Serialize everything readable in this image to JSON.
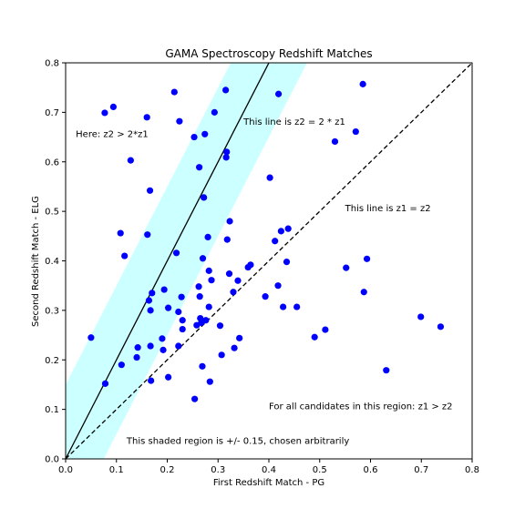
{
  "chart_data": {
    "type": "scatter",
    "title": "GAMA Spectroscopy Redshift Matches",
    "xlabel": "First Redshift Match - PG",
    "ylabel": "Second Redshift Match - ELG",
    "xlim": [
      0.0,
      0.8
    ],
    "ylim": [
      0.0,
      0.8
    ],
    "xticks": [
      "0.0",
      "0.1",
      "0.2",
      "0.3",
      "0.4",
      "0.5",
      "0.6",
      "0.7",
      "0.8"
    ],
    "yticks": [
      "0.0",
      "0.1",
      "0.2",
      "0.3",
      "0.4",
      "0.5",
      "0.6",
      "0.7",
      "0.8"
    ],
    "grid": false,
    "colors": {
      "points": "#0000ff",
      "band": "#ccffff",
      "line": "#000000"
    },
    "lines": [
      {
        "name": "z2 = 2 * z1",
        "slope": 2,
        "intercept": 0,
        "style": "solid"
      },
      {
        "name": "z1 = z2",
        "slope": 1,
        "intercept": 0,
        "style": "dashed"
      }
    ],
    "band": {
      "around_slope": 2,
      "half_width": 0.15
    },
    "annotations": [
      {
        "text": "Here: z2 > 2*z1",
        "x": 0.02,
        "y": 0.65
      },
      {
        "text": "This line is z2 = 2 * z1",
        "x": 0.35,
        "y": 0.675
      },
      {
        "text": "This line is z1 = z2",
        "x": 0.55,
        "y": 0.5
      },
      {
        "text": "For all candidates in this region: z1 > z2",
        "x": 0.4,
        "y": 0.1
      },
      {
        "text": "This shaded region is +/- 0.15, chosen arbitrarily",
        "x": 0.12,
        "y": 0.03
      }
    ],
    "points": [
      [
        0.05,
        0.245
      ],
      [
        0.078,
        0.152
      ],
      [
        0.077,
        0.699
      ],
      [
        0.094,
        0.711
      ],
      [
        0.108,
        0.456
      ],
      [
        0.11,
        0.19
      ],
      [
        0.116,
        0.41
      ],
      [
        0.128,
        0.603
      ],
      [
        0.14,
        0.205
      ],
      [
        0.142,
        0.225
      ],
      [
        0.16,
        0.69
      ],
      [
        0.161,
        0.453
      ],
      [
        0.164,
        0.32
      ],
      [
        0.166,
        0.542
      ],
      [
        0.167,
        0.228
      ],
      [
        0.167,
        0.3
      ],
      [
        0.168,
        0.158
      ],
      [
        0.17,
        0.335
      ],
      [
        0.19,
        0.243
      ],
      [
        0.192,
        0.22
      ],
      [
        0.194,
        0.342
      ],
      [
        0.202,
        0.305
      ],
      [
        0.202,
        0.165
      ],
      [
        0.214,
        0.741
      ],
      [
        0.218,
        0.416
      ],
      [
        0.222,
        0.297
      ],
      [
        0.222,
        0.228
      ],
      [
        0.224,
        0.682
      ],
      [
        0.228,
        0.327
      ],
      [
        0.23,
        0.262
      ],
      [
        0.23,
        0.28
      ],
      [
        0.253,
        0.65
      ],
      [
        0.254,
        0.121
      ],
      [
        0.258,
        0.27
      ],
      [
        0.262,
        0.348
      ],
      [
        0.263,
        0.589
      ],
      [
        0.264,
        0.328
      ],
      [
        0.265,
        0.284
      ],
      [
        0.267,
        0.275
      ],
      [
        0.269,
        0.187
      ],
      [
        0.27,
        0.405
      ],
      [
        0.272,
        0.528
      ],
      [
        0.274,
        0.656
      ],
      [
        0.276,
        0.28
      ],
      [
        0.28,
        0.448
      ],
      [
        0.282,
        0.307
      ],
      [
        0.282,
        0.38
      ],
      [
        0.284,
        0.156
      ],
      [
        0.287,
        0.361
      ],
      [
        0.293,
        0.7
      ],
      [
        0.304,
        0.269
      ],
      [
        0.307,
        0.21
      ],
      [
        0.315,
        0.745
      ],
      [
        0.316,
        0.609
      ],
      [
        0.317,
        0.62
      ],
      [
        0.318,
        0.443
      ],
      [
        0.322,
        0.374
      ],
      [
        0.323,
        0.48
      ],
      [
        0.33,
        0.337
      ],
      [
        0.332,
        0.224
      ],
      [
        0.339,
        0.36
      ],
      [
        0.342,
        0.244
      ],
      [
        0.359,
        0.387
      ],
      [
        0.364,
        0.392
      ],
      [
        0.393,
        0.328
      ],
      [
        0.402,
        0.568
      ],
      [
        0.412,
        0.44
      ],
      [
        0.418,
        0.35
      ],
      [
        0.419,
        0.737
      ],
      [
        0.424,
        0.46
      ],
      [
        0.428,
        0.307
      ],
      [
        0.435,
        0.398
      ],
      [
        0.438,
        0.465
      ],
      [
        0.455,
        0.307
      ],
      [
        0.49,
        0.246
      ],
      [
        0.511,
        0.261
      ],
      [
        0.53,
        0.641
      ],
      [
        0.552,
        0.386
      ],
      [
        0.571,
        0.661
      ],
      [
        0.585,
        0.757
      ],
      [
        0.587,
        0.337
      ],
      [
        0.593,
        0.404
      ],
      [
        0.631,
        0.179
      ],
      [
        0.699,
        0.287
      ],
      [
        0.738,
        0.267
      ]
    ]
  }
}
